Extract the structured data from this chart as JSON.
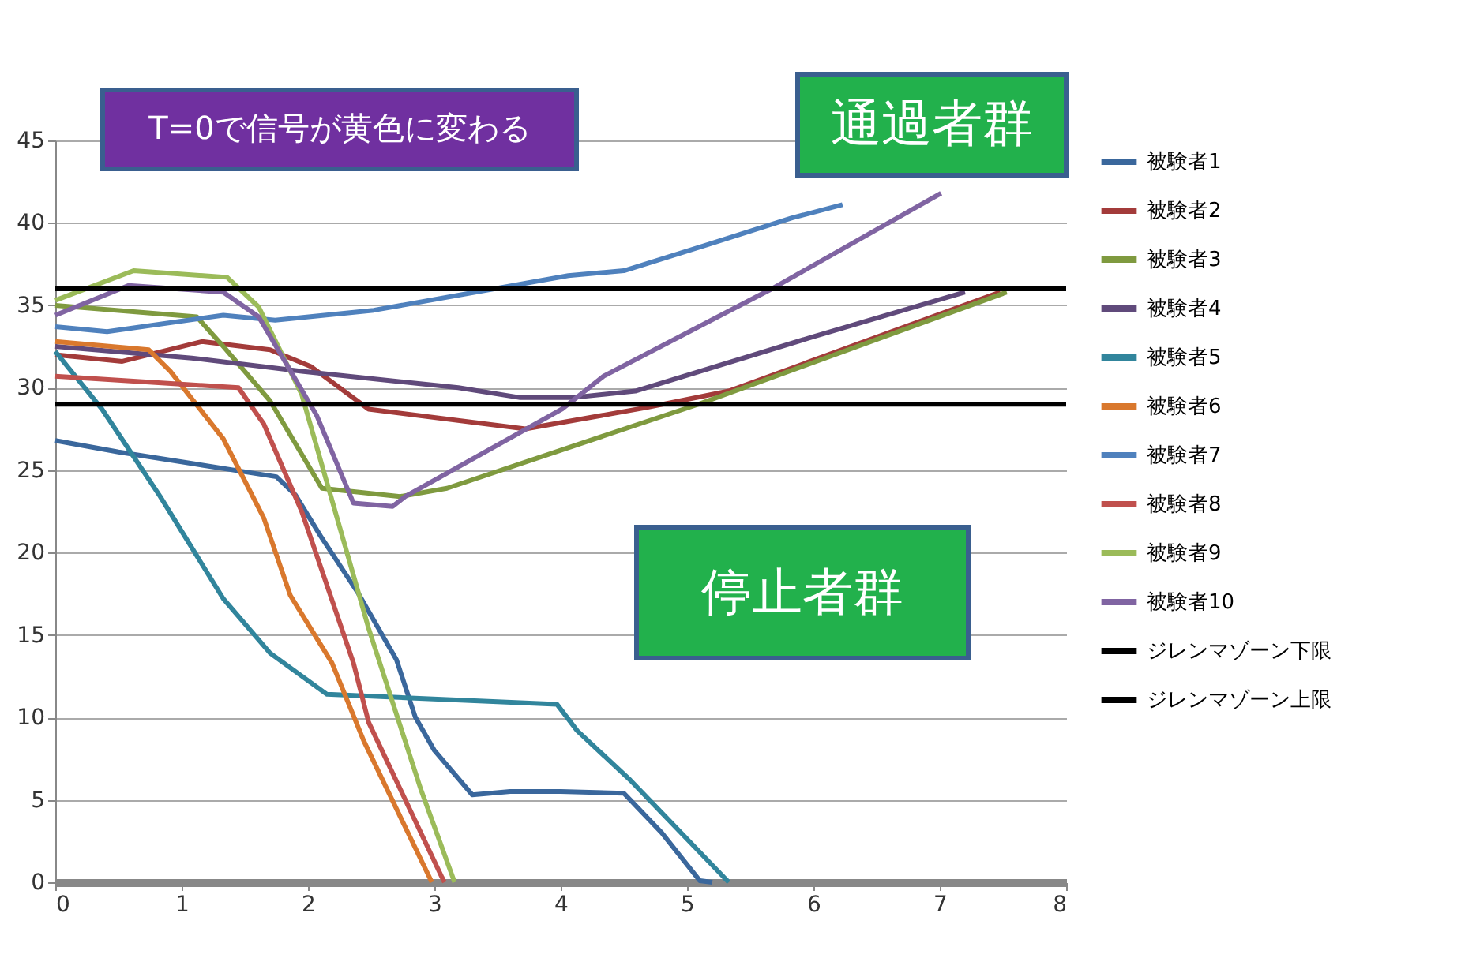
{
  "chart_data": {
    "type": "line",
    "xlim": [
      0,
      8
    ],
    "xticks": [
      0,
      1,
      2,
      3,
      4,
      5,
      6,
      7,
      8
    ],
    "ylim": [
      0,
      45
    ],
    "yticks": [
      0,
      5,
      10,
      15,
      20,
      25,
      30,
      35,
      40,
      45
    ],
    "grid": "y",
    "legend": "right",
    "line_style": "solid",
    "marker": "none",
    "annotations": [
      "T=0で信号が黄色に変わる",
      "通過者群",
      "停止者群"
    ],
    "series": [
      {
        "name": "被験者1",
        "color": "#3a679c",
        "x": [
          0,
          0.5,
          1,
          1.5,
          1.75,
          1.9,
          2.1,
          2.4,
          2.7,
          2.85,
          3,
          3.3,
          3.6,
          4,
          4.5,
          4.8,
          5.1,
          5.2
        ],
        "values": [
          26.8,
          26.1,
          25.5,
          24.9,
          24.6,
          23.5,
          21,
          17.5,
          13.5,
          10,
          8,
          5.3,
          5.5,
          5.5,
          5.4,
          3,
          0.1,
          0
        ]
      },
      {
        "name": "被験者2",
        "color": "#a33b3a",
        "x": [
          0,
          0.53,
          1.16,
          1.7,
          2.02,
          2.48,
          3.72,
          4.68,
          5.33,
          7.48
        ],
        "values": [
          32,
          31.6,
          32.8,
          32.3,
          31.3,
          28.7,
          27.5,
          28.8,
          29.8,
          35.8
        ]
      },
      {
        "name": "被験者3",
        "color": "#7f9a3f",
        "x": [
          0,
          1.12,
          1.33,
          1.7,
          2.11,
          2.73,
          3.1,
          5.09,
          7.53
        ],
        "values": [
          35,
          34.3,
          32.5,
          29.2,
          23.9,
          23.4,
          23.9,
          29,
          35.8
        ]
      },
      {
        "name": "被験者4",
        "color": "#604a7b",
        "x": [
          0,
          1.08,
          1.95,
          3.19,
          3.68,
          4.09,
          4.59,
          6,
          7.2
        ],
        "values": [
          32.5,
          31.8,
          31,
          30,
          29.4,
          29.4,
          29.8,
          33.1,
          35.8
        ]
      },
      {
        "name": "被験者5",
        "color": "#31859c",
        "x": [
          0,
          0.37,
          0.83,
          1.33,
          1.7,
          2.15,
          3.97,
          4.13,
          4.55,
          5.33
        ],
        "values": [
          32.2,
          28.7,
          23.4,
          17.2,
          13.9,
          11.4,
          10.8,
          9.2,
          6.2,
          0
        ]
      },
      {
        "name": "被験者6",
        "color": "#d9782d",
        "x": [
          0,
          0.74,
          0.91,
          1.33,
          1.65,
          1.86,
          2.19,
          2.44,
          2.98
        ],
        "values": [
          32.8,
          32.3,
          31,
          26.9,
          22.1,
          17.4,
          13.3,
          8.6,
          0
        ]
      },
      {
        "name": "被験者7",
        "color": "#4f81bd",
        "x": [
          0,
          0.41,
          1.33,
          1.74,
          2.52,
          4.06,
          4.5,
          5.17,
          5.83,
          6.23
        ],
        "values": [
          33.7,
          33.4,
          34.4,
          34.1,
          34.7,
          36.8,
          37.1,
          38.7,
          40.3,
          41.1
        ]
      },
      {
        "name": "被験者8",
        "color": "#c0504d",
        "x": [
          0,
          1.45,
          1.65,
          1.95,
          2.36,
          2.48,
          3.06,
          3.08
        ],
        "values": [
          30.7,
          30,
          27.8,
          22.5,
          13.3,
          9.7,
          0.3,
          0
        ]
      },
      {
        "name": "被験者9",
        "color": "#9bbb59",
        "x": [
          0,
          0.62,
          1.36,
          1.61,
          1.95,
          2.23,
          2.48,
          2.89,
          3.16
        ],
        "values": [
          35.3,
          37.1,
          36.7,
          34.9,
          29.6,
          22.1,
          15.4,
          5.7,
          0
        ]
      },
      {
        "name": "被験者10",
        "color": "#8064a2",
        "x": [
          0,
          0.58,
          1.33,
          1.61,
          2.07,
          2.36,
          2.67,
          2.77,
          4.01,
          4.34,
          5.67,
          7.01
        ],
        "values": [
          34.4,
          36.2,
          35.8,
          34.3,
          28.3,
          23,
          22.8,
          23.4,
          28.7,
          30.7,
          36,
          41.8
        ]
      },
      {
        "name": "ジレンマゾーン下限",
        "color": "#000000",
        "x": [
          0,
          8
        ],
        "values": [
          29,
          29
        ]
      },
      {
        "name": "ジレンマゾーン上限",
        "color": "#000000",
        "x": [
          0,
          8
        ],
        "values": [
          36,
          36
        ]
      }
    ]
  }
}
